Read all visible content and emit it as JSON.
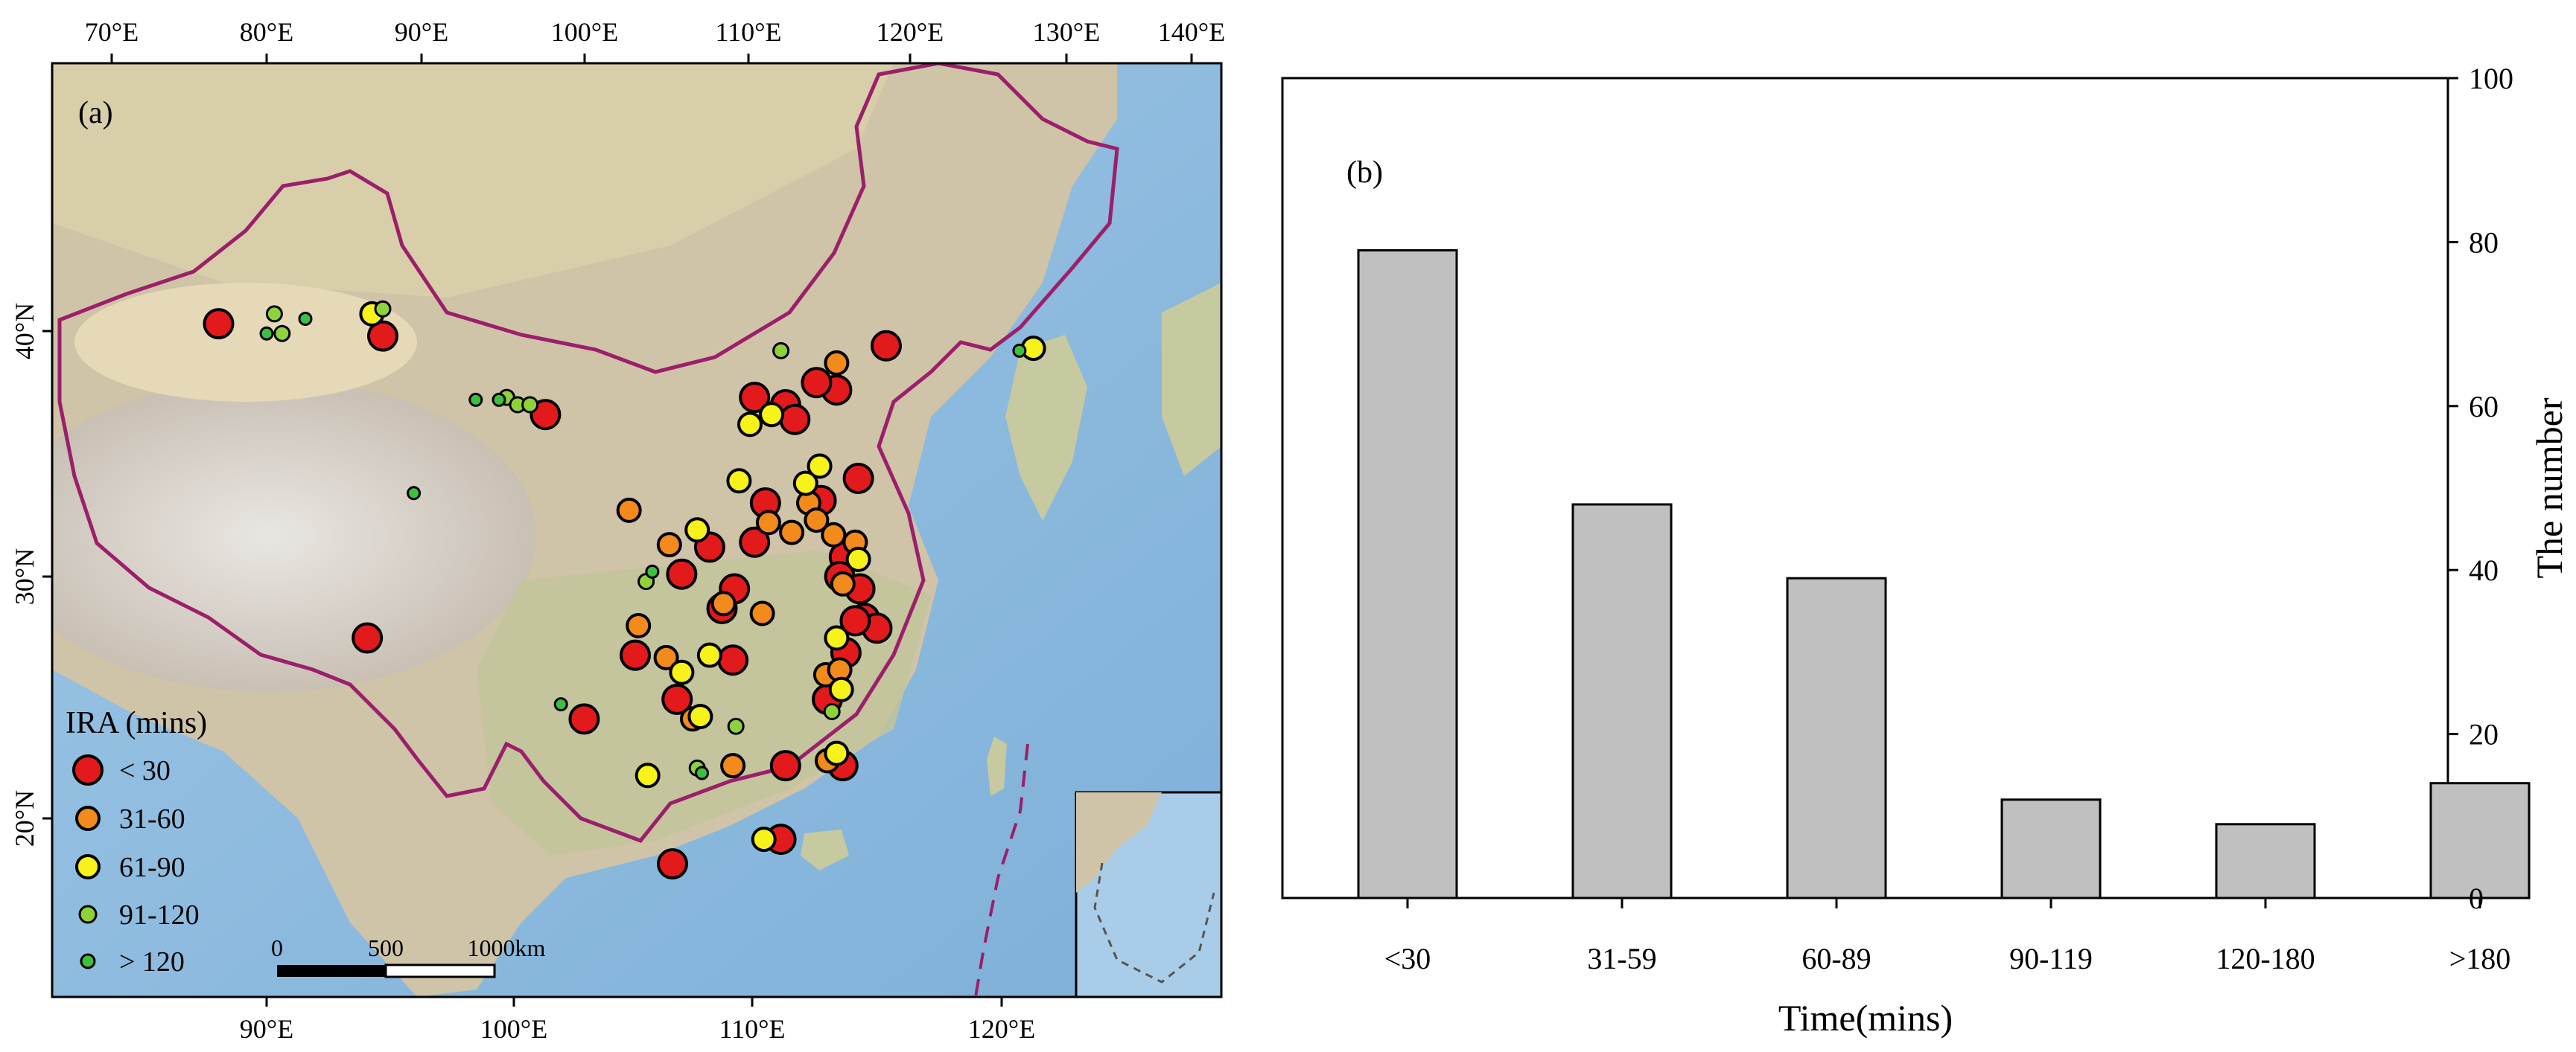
{
  "chart_data": [
    {
      "type": "scatter",
      "panel_label": "(a)",
      "legend_title": "IRA (mins)",
      "legend_position": "bottom-left",
      "top_axis_ticks": [
        "70°E",
        "80°E",
        "90°E",
        "100°E",
        "110°E",
        "120°E",
        "130°E",
        "140°E"
      ],
      "bottom_axis_ticks": [
        "90°E",
        "100°E",
        "110°E",
        "120°E"
      ],
      "left_axis_ticks": [
        "40°N",
        "30°N",
        "20°N"
      ],
      "scale_bar": {
        "labels": [
          "0",
          "500",
          "1000km"
        ]
      },
      "categories": [
        {
          "label": "< 30",
          "color": "#e31a1c",
          "size": "large"
        },
        {
          "label": "31-60",
          "color": "#f28a1c",
          "size": "medium"
        },
        {
          "label": "61-90",
          "color": "#f7f21a",
          "size": "medium"
        },
        {
          "label": "91-120",
          "color": "#8fd13a",
          "size": "small"
        },
        {
          "label": "> 120",
          "color": "#3fbf3f",
          "size": "small"
        }
      ],
      "points": [
        {
          "lon": 76.9,
          "lat": 40.3,
          "c": 0
        },
        {
          "lon": 87.5,
          "lat": 39.8,
          "c": 0
        },
        {
          "lon": 98.0,
          "lat": 36.6,
          "c": 0
        },
        {
          "lon": 86.5,
          "lat": 27.5,
          "c": 0
        },
        {
          "lon": 100.5,
          "lat": 24.2,
          "c": 0
        },
        {
          "lon": 106.2,
          "lat": 18.3,
          "c": 0
        },
        {
          "lon": 106.5,
          "lat": 25.0,
          "c": 0
        },
        {
          "lon": 103.8,
          "lat": 26.8,
          "c": 0
        },
        {
          "lon": 106.8,
          "lat": 30.1,
          "c": 0
        },
        {
          "lon": 108.6,
          "lat": 31.2,
          "c": 0
        },
        {
          "lon": 110.2,
          "lat": 29.5,
          "c": 0
        },
        {
          "lon": 109.4,
          "lat": 28.7,
          "c": 0
        },
        {
          "lon": 110.1,
          "lat": 26.6,
          "c": 0
        },
        {
          "lon": 111.5,
          "lat": 31.4,
          "c": 0
        },
        {
          "lon": 112.2,
          "lat": 33.0,
          "c": 0
        },
        {
          "lon": 111.5,
          "lat": 37.3,
          "c": 0
        },
        {
          "lon": 113.5,
          "lat": 37.0,
          "c": 0
        },
        {
          "lon": 114.1,
          "lat": 36.4,
          "c": 0
        },
        {
          "lon": 116.8,
          "lat": 37.6,
          "c": 0
        },
        {
          "lon": 115.8,
          "lat": 33.1,
          "c": 0
        },
        {
          "lon": 117.3,
          "lat": 30.8,
          "c": 0
        },
        {
          "lon": 117.0,
          "lat": 30.0,
          "c": 0
        },
        {
          "lon": 118.3,
          "lat": 29.5,
          "c": 0
        },
        {
          "lon": 118.6,
          "lat": 28.3,
          "c": 0
        },
        {
          "lon": 119.4,
          "lat": 27.9,
          "c": 0
        },
        {
          "lon": 117.4,
          "lat": 26.9,
          "c": 0
        },
        {
          "lon": 116.2,
          "lat": 25.0,
          "c": 0
        },
        {
          "lon": 113.5,
          "lat": 22.3,
          "c": 0
        },
        {
          "lon": 117.2,
          "lat": 22.3,
          "c": 0
        },
        {
          "lon": 113.2,
          "lat": 19.3,
          "c": 0
        },
        {
          "lon": 115.5,
          "lat": 37.9,
          "c": 0
        },
        {
          "lon": 120.0,
          "lat": 39.4,
          "c": 0
        },
        {
          "lon": 118.2,
          "lat": 34.0,
          "c": 0
        },
        {
          "lon": 118.0,
          "lat": 28.2,
          "c": 0
        },
        {
          "lon": 103.4,
          "lat": 32.7,
          "c": 1
        },
        {
          "lon": 104.0,
          "lat": 28.0,
          "c": 1
        },
        {
          "lon": 106.0,
          "lat": 31.3,
          "c": 1
        },
        {
          "lon": 105.8,
          "lat": 26.7,
          "c": 1
        },
        {
          "lon": 107.5,
          "lat": 24.2,
          "c": 1
        },
        {
          "lon": 109.5,
          "lat": 28.9,
          "c": 1
        },
        {
          "lon": 112.0,
          "lat": 28.5,
          "c": 1
        },
        {
          "lon": 110.1,
          "lat": 22.3,
          "c": 1
        },
        {
          "lon": 113.9,
          "lat": 31.8,
          "c": 1
        },
        {
          "lon": 115.0,
          "lat": 33.0,
          "c": 1
        },
        {
          "lon": 115.5,
          "lat": 32.3,
          "c": 1
        },
        {
          "lon": 116.6,
          "lat": 31.7,
          "c": 1
        },
        {
          "lon": 118.0,
          "lat": 31.4,
          "c": 1
        },
        {
          "lon": 117.2,
          "lat": 29.7,
          "c": 1
        },
        {
          "lon": 116.1,
          "lat": 26.0,
          "c": 1
        },
        {
          "lon": 117.0,
          "lat": 26.2,
          "c": 1
        },
        {
          "lon": 116.2,
          "lat": 22.5,
          "c": 1
        },
        {
          "lon": 116.8,
          "lat": 38.7,
          "c": 1
        },
        {
          "lon": 112.4,
          "lat": 32.2,
          "c": 1
        },
        {
          "lon": 104.6,
          "lat": 21.9,
          "c": 2
        },
        {
          "lon": 106.8,
          "lat": 26.1,
          "c": 2
        },
        {
          "lon": 108.6,
          "lat": 26.8,
          "c": 2
        },
        {
          "lon": 107.8,
          "lat": 31.9,
          "c": 2
        },
        {
          "lon": 110.5,
          "lat": 33.9,
          "c": 2
        },
        {
          "lon": 111.2,
          "lat": 36.2,
          "c": 2
        },
        {
          "lon": 112.6,
          "lat": 36.6,
          "c": 2
        },
        {
          "lon": 115.7,
          "lat": 34.5,
          "c": 2
        },
        {
          "lon": 114.8,
          "lat": 33.8,
          "c": 2
        },
        {
          "lon": 118.2,
          "lat": 30.7,
          "c": 2
        },
        {
          "lon": 116.8,
          "lat": 27.5,
          "c": 2
        },
        {
          "lon": 117.1,
          "lat": 25.4,
          "c": 2
        },
        {
          "lon": 116.8,
          "lat": 22.8,
          "c": 2
        },
        {
          "lon": 108.0,
          "lat": 24.3,
          "c": 2
        },
        {
          "lon": 112.1,
          "lat": 19.3,
          "c": 2
        },
        {
          "lon": 86.8,
          "lat": 40.7,
          "c": 2
        },
        {
          "lon": 129.5,
          "lat": 39.3,
          "c": 2
        },
        {
          "lon": 87.5,
          "lat": 40.9,
          "c": 3
        },
        {
          "lon": 80.5,
          "lat": 40.7,
          "c": 3
        },
        {
          "lon": 81.0,
          "lat": 39.9,
          "c": 3
        },
        {
          "lon": 95.5,
          "lat": 37.3,
          "c": 3
        },
        {
          "lon": 96.2,
          "lat": 37.0,
          "c": 3
        },
        {
          "lon": 97.0,
          "lat": 37.0,
          "c": 3
        },
        {
          "lon": 104.5,
          "lat": 29.8,
          "c": 3
        },
        {
          "lon": 107.8,
          "lat": 22.2,
          "c": 3
        },
        {
          "lon": 110.3,
          "lat": 23.9,
          "c": 3
        },
        {
          "lon": 116.5,
          "lat": 24.5,
          "c": 3
        },
        {
          "lon": 113.2,
          "lat": 39.2,
          "c": 3
        },
        {
          "lon": 82.5,
          "lat": 40.5,
          "c": 4
        },
        {
          "lon": 80.0,
          "lat": 39.9,
          "c": 4
        },
        {
          "lon": 93.5,
          "lat": 37.2,
          "c": 4
        },
        {
          "lon": 95.0,
          "lat": 37.2,
          "c": 4
        },
        {
          "lon": 89.5,
          "lat": 33.4,
          "c": 4
        },
        {
          "lon": 99.0,
          "lat": 24.8,
          "c": 4
        },
        {
          "lon": 104.9,
          "lat": 30.2,
          "c": 4
        },
        {
          "lon": 108.1,
          "lat": 22.0,
          "c": 4
        },
        {
          "lon": 128.6,
          "lat": 39.2,
          "c": 4
        }
      ]
    },
    {
      "type": "bar",
      "panel_label": "(b)",
      "categories": [
        "<30",
        "31-59",
        "60-89",
        "90-119",
        "120-180",
        ">180"
      ],
      "values": [
        79,
        48,
        39,
        12,
        9,
        14
      ],
      "xlabel": "Time(mins)",
      "ylabel": "The number",
      "ylim": [
        0,
        100
      ],
      "yticks": [
        "0",
        "20",
        "40",
        "60",
        "80",
        "100"
      ],
      "y_axis_side": "right",
      "bar_color": "#c0c0c0"
    }
  ]
}
